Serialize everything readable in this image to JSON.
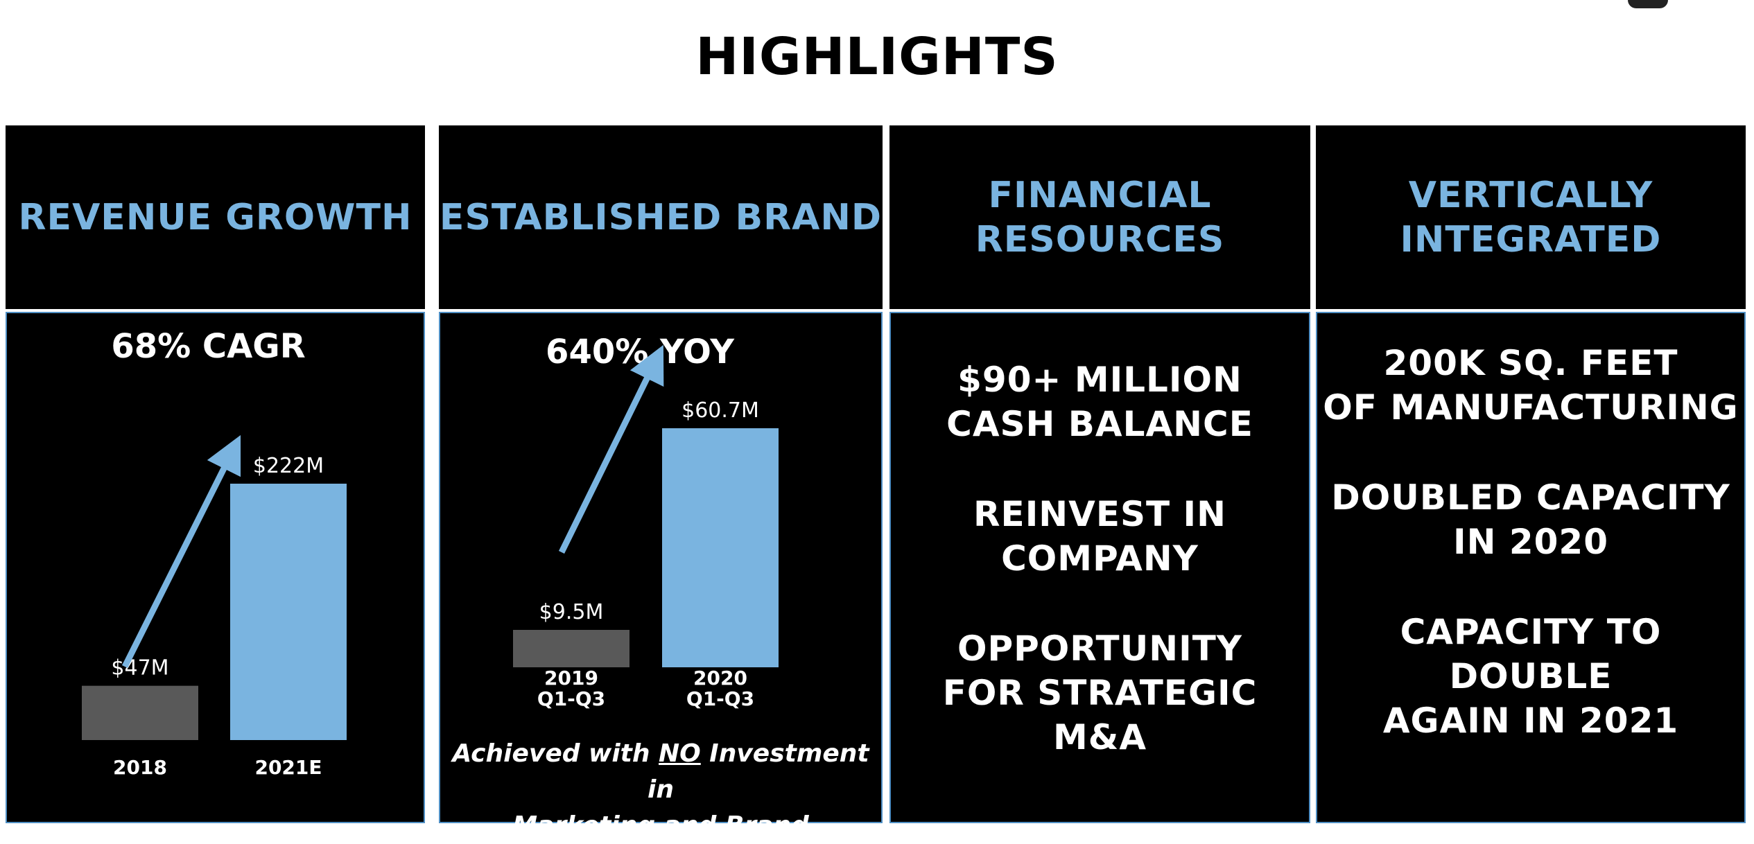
{
  "page": {
    "title": "HIGHLIGHTS"
  },
  "columns": [
    {
      "header": "REVENUE GROWTH"
    },
    {
      "header": "ESTABLISHED BRAND"
    },
    {
      "header": "FINANCIAL\nRESOURCES"
    },
    {
      "header": "VERTICALLY\nINTEGRATED"
    }
  ],
  "revenue": {
    "stat": "68% CAGR"
  },
  "brand": {
    "stat": "640% YOY",
    "note_part1": "Achieved with ",
    "note_emphasis": "NO",
    "note_part2": " Investment in",
    "note_line2": "Marketing and Brand"
  },
  "financial": {
    "bullets": [
      "$90+ MILLION\nCASH BALANCE",
      "REINVEST IN\nCOMPANY",
      "OPPORTUNITY\nFOR STRATEGIC\nM&A"
    ]
  },
  "vertical": {
    "bullets": [
      "200K SQ. FEET\nOF MANUFACTURING",
      "DOUBLED CAPACITY\nIN 2020",
      "CAPACITY TO\nDOUBLE\nAGAIN IN 2021"
    ]
  },
  "colors": {
    "accent": "#7ab4e0",
    "bar_prior": "#595959",
    "bar_current": "#7ab4e0",
    "panel": "#000000",
    "border": "#4f8fc4"
  },
  "chart_data": [
    {
      "type": "bar",
      "categories": [
        "2018",
        "2021E"
      ],
      "values": [
        47,
        222
      ],
      "value_labels": [
        "$47M",
        "$222M"
      ],
      "annotation": "68% CAGR",
      "ylim": [
        0,
        222
      ]
    },
    {
      "type": "bar",
      "categories": [
        "2019\nQ1-Q3",
        "2020\nQ1-Q3"
      ],
      "values": [
        9.5,
        60.7
      ],
      "value_labels": [
        "$9.5M",
        "$60.7M"
      ],
      "annotation": "640% YOY",
      "ylim": [
        0,
        60.7
      ]
    }
  ]
}
